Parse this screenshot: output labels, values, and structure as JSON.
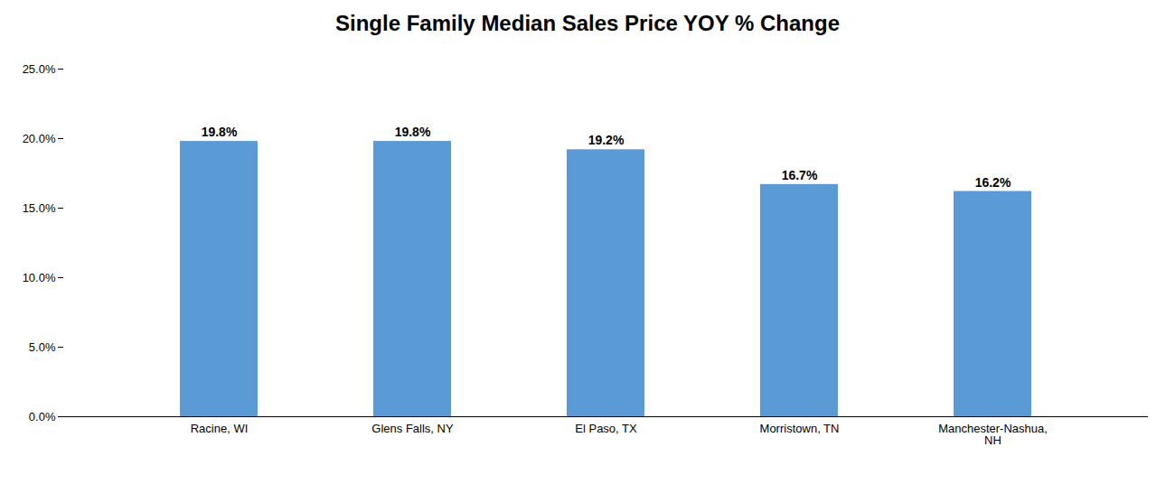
{
  "chart_data": {
    "type": "bar",
    "title": "Single Family Median Sales Price YOY % Change",
    "categories": [
      "Racine, WI",
      "Glens Falls, NY",
      "El Paso, TX",
      "Morristown, TN",
      "Manchester-Nashua,\nNH"
    ],
    "values": [
      19.8,
      19.8,
      19.2,
      16.7,
      16.2
    ],
    "value_labels": [
      "19.8%",
      "19.8%",
      "19.2%",
      "16.7%",
      "16.2%"
    ],
    "color": "#5B9BD5",
    "ylim": [
      0,
      25
    ],
    "yticks": [
      {
        "value": 0,
        "label": "0.0%"
      },
      {
        "value": 5,
        "label": "5.0%"
      },
      {
        "value": 10,
        "label": "10.0%"
      },
      {
        "value": 15,
        "label": "15.0%"
      },
      {
        "value": 20,
        "label": "20.0%"
      },
      {
        "value": 25,
        "label": "25.0%"
      }
    ],
    "grid": false,
    "data_labels": true
  }
}
